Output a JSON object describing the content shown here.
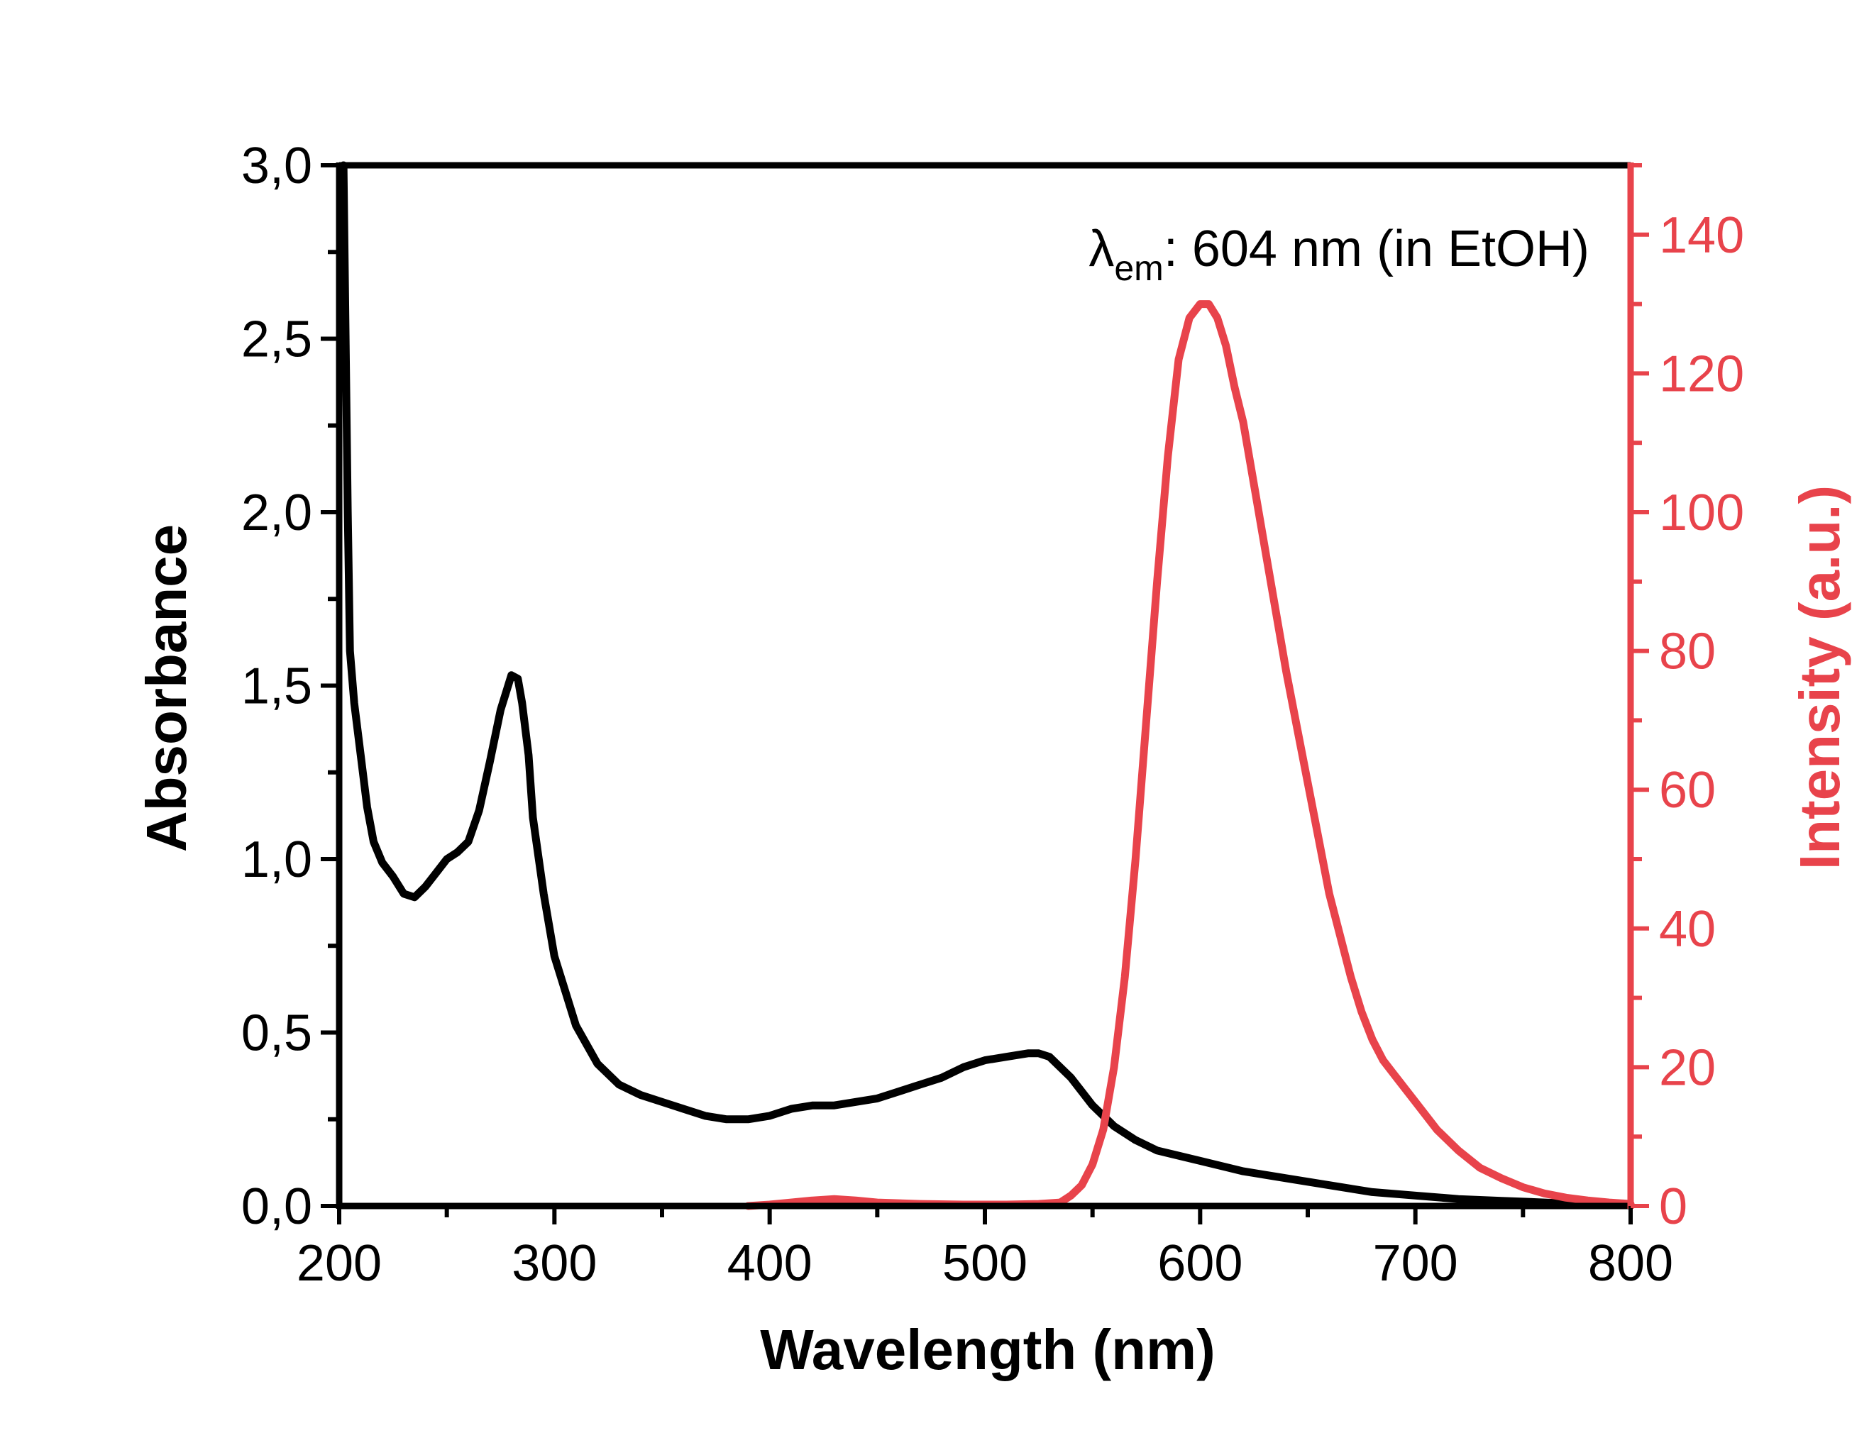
{
  "chart_data": {
    "type": "line",
    "xlabel": "Wavelength (nm)",
    "ylabel": "Absorbance",
    "y2label": "Intensity (a.u.)",
    "xlim": [
      200,
      800
    ],
    "ylim": [
      0,
      3.0
    ],
    "y2lim": [
      0,
      150
    ],
    "x_ticks": [
      200,
      300,
      400,
      500,
      600,
      700,
      800
    ],
    "x_tick_labels": [
      "200",
      "300",
      "400",
      "500",
      "600",
      "700",
      "800"
    ],
    "y_ticks": [
      0,
      0.5,
      1.0,
      1.5,
      2.0,
      2.5,
      3.0
    ],
    "y_tick_labels": [
      "0,0",
      "0,5",
      "1,0",
      "1,5",
      "2,0",
      "2,5",
      "3,0"
    ],
    "y2_ticks": [
      0,
      20,
      40,
      60,
      80,
      100,
      120,
      140
    ],
    "y2_tick_labels": [
      "0",
      "20",
      "40",
      "60",
      "80",
      "100",
      "120",
      "140"
    ],
    "annotation": {
      "symbol": "λ",
      "subscript": "em",
      "text": ": 604 nm (in EtOH)"
    },
    "colors": {
      "absorbance": "#000000",
      "intensity": "#e8434b"
    },
    "grid": false,
    "legend": "none",
    "series": [
      {
        "axis": "left",
        "color": "#000000",
        "x": [
          202,
          203,
          204,
          205,
          207,
          210,
          213,
          216,
          220,
          225,
          230,
          235,
          240,
          245,
          250,
          255,
          260,
          265,
          270,
          275,
          280,
          283,
          285,
          288,
          290,
          295,
          300,
          305,
          310,
          320,
          330,
          340,
          350,
          360,
          370,
          380,
          390,
          400,
          410,
          420,
          430,
          440,
          450,
          460,
          470,
          480,
          490,
          500,
          510,
          520,
          525,
          530,
          540,
          550,
          560,
          570,
          580,
          600,
          620,
          640,
          660,
          680,
          700,
          720,
          740,
          760,
          780,
          800
        ],
        "y": [
          3.0,
          2.5,
          2.0,
          1.6,
          1.45,
          1.3,
          1.15,
          1.05,
          0.99,
          0.95,
          0.9,
          0.89,
          0.92,
          0.96,
          1.0,
          1.02,
          1.05,
          1.14,
          1.28,
          1.43,
          1.53,
          1.52,
          1.45,
          1.3,
          1.12,
          0.9,
          0.72,
          0.62,
          0.52,
          0.41,
          0.35,
          0.32,
          0.3,
          0.28,
          0.26,
          0.25,
          0.25,
          0.26,
          0.28,
          0.29,
          0.29,
          0.3,
          0.31,
          0.33,
          0.35,
          0.37,
          0.4,
          0.42,
          0.43,
          0.44,
          0.44,
          0.43,
          0.37,
          0.29,
          0.23,
          0.19,
          0.16,
          0.13,
          0.1,
          0.08,
          0.06,
          0.04,
          0.03,
          0.02,
          0.015,
          0.01,
          0.005,
          0.003
        ]
      },
      {
        "axis": "right",
        "color": "#e8434b",
        "x": [
          390,
          400,
          410,
          420,
          430,
          440,
          450,
          470,
          490,
          510,
          525,
          535,
          540,
          545,
          550,
          555,
          560,
          565,
          570,
          575,
          580,
          585,
          590,
          595,
          600,
          604,
          608,
          612,
          616,
          620,
          625,
          630,
          635,
          640,
          645,
          650,
          655,
          660,
          665,
          670,
          675,
          680,
          685,
          690,
          695,
          700,
          710,
          720,
          730,
          740,
          750,
          760,
          770,
          780,
          790,
          800
        ],
        "y": [
          0,
          0.2,
          0.5,
          0.8,
          1.0,
          0.8,
          0.5,
          0.3,
          0.2,
          0.2,
          0.3,
          0.5,
          1.5,
          3,
          6,
          11,
          20,
          33,
          50,
          70,
          90,
          108,
          122,
          128,
          130,
          130,
          128,
          124,
          118,
          113,
          104,
          95,
          86,
          77,
          69,
          61,
          53,
          45,
          39,
          33,
          28,
          24,
          21,
          19,
          17,
          15,
          11,
          8,
          5.5,
          4,
          2.7,
          1.8,
          1.2,
          0.8,
          0.5,
          0.3
        ]
      }
    ]
  }
}
